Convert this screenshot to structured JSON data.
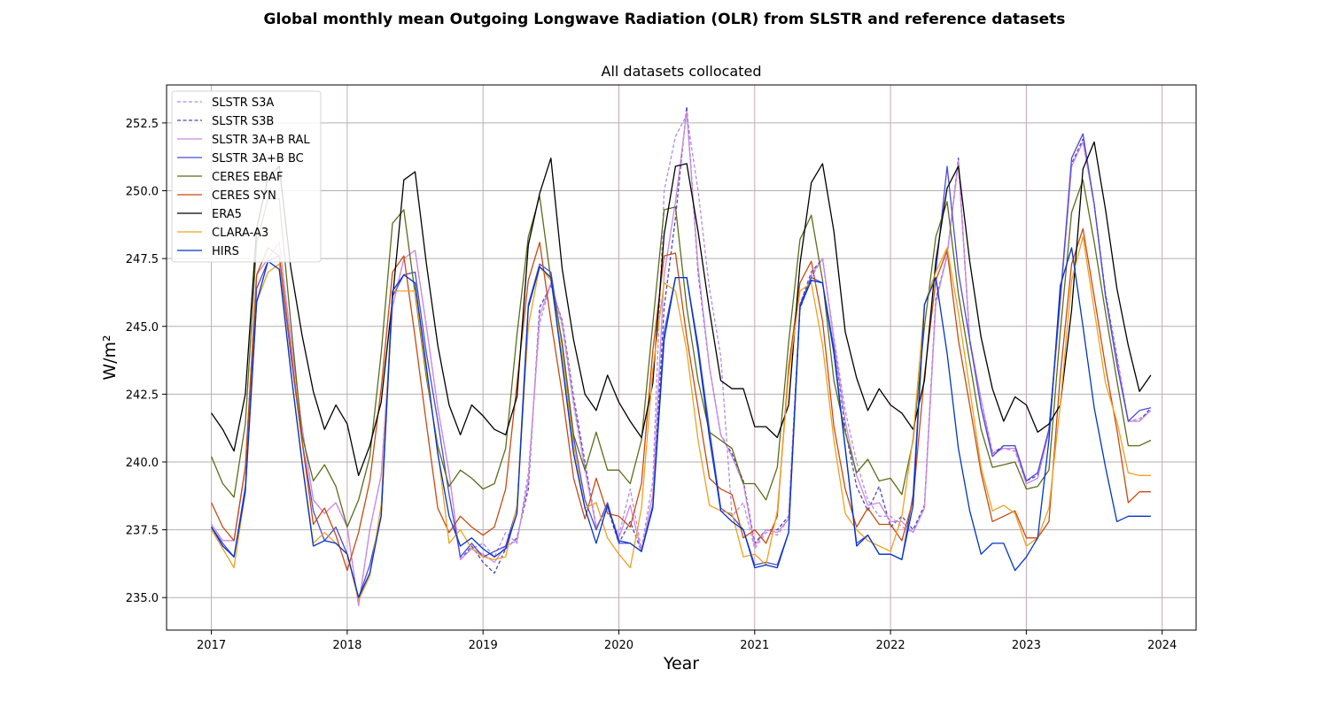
{
  "title": "Global monthly mean Outgoing Longwave Radiation (OLR) from SLSTR and reference datasets",
  "chart_data": {
    "type": "line",
    "title": "Global monthly mean Outgoing Longwave Radiation (OLR) from SLSTR and reference datasets",
    "subtitle": "All datasets collocated",
    "xlabel": "Year",
    "ylabel": "W/m²",
    "xlim": [
      2016.67,
      2024.25
    ],
    "ylim": [
      233.8,
      253.9
    ],
    "xticks": [
      2017,
      2018,
      2019,
      2020,
      2021,
      2022,
      2023,
      2024
    ],
    "xtick_labels": [
      "2017",
      "2018",
      "2019",
      "2020",
      "2021",
      "2022",
      "2023",
      "2024"
    ],
    "yticks": [
      235.0,
      237.5,
      240.0,
      242.5,
      245.0,
      247.5,
      250.0,
      252.5
    ],
    "ytick_labels": [
      "235.0",
      "237.5",
      "240.0",
      "242.5",
      "245.0",
      "247.5",
      "250.0",
      "252.5"
    ],
    "grid": true,
    "legend_position": "top-left",
    "x_start": 2017,
    "x_step_months": 1,
    "series": [
      {
        "name": "SLSTR S3A",
        "color": "#b58ae8",
        "dash": "dashed",
        "values": [
          237.7,
          237.1,
          237.1,
          239.8,
          246.9,
          247.5,
          248.1,
          244.6,
          241.3,
          238.6,
          238.1,
          238.5,
          237.6,
          234.7,
          237.5,
          239.5,
          245.7,
          247.5,
          247.8,
          245.0,
          242.0,
          239.6,
          236.4,
          236.8,
          237.0,
          236.5,
          237.4,
          237.0,
          239.6,
          245.1,
          246.6,
          245.0,
          242.1,
          239.7,
          237.6,
          238.3,
          237.3,
          239.0,
          236.8,
          239.3,
          250.0,
          252.0,
          252.8,
          250.0,
          246.4,
          243.9,
          238.0,
          238.5,
          236.8,
          237.4,
          237.3,
          237.9,
          245.6,
          246.8,
          247.5,
          244.6,
          241.9,
          240.0,
          238.6,
          238.0,
          238.0,
          237.6,
          237.4,
          238.3,
          245.8,
          247.7,
          251.0,
          244.4,
          242.3,
          240.4,
          240.5,
          240.4,
          239.2,
          239.4,
          241.1,
          245.9,
          250.9,
          251.8,
          249.5,
          246.1,
          243.8,
          241.5,
          241.6,
          241.9
        ]
      },
      {
        "name": "SLSTR S3B",
        "color": "#4747b8",
        "dash": "dashed",
        "values": [
          null,
          null,
          null,
          null,
          null,
          null,
          null,
          null,
          null,
          null,
          null,
          null,
          null,
          null,
          null,
          null,
          null,
          null,
          null,
          null,
          null,
          null,
          236.4,
          236.9,
          236.3,
          235.9,
          236.8,
          237.2,
          239.0,
          245.7,
          246.5,
          245.2,
          242.4,
          240.0,
          237.6,
          238.3,
          237.0,
          237.8,
          236.7,
          238.4,
          245.7,
          249.0,
          253.1,
          247.0,
          243.5,
          241.0,
          240.3,
          239.3,
          237.0,
          237.5,
          237.5,
          238.0,
          245.8,
          247.0,
          247.5,
          244.5,
          241.2,
          239.1,
          238.2,
          239.1,
          237.6,
          238.0,
          237.5,
          238.4,
          246.0,
          247.6,
          251.2,
          244.5,
          242.3,
          240.3,
          240.6,
          240.6,
          239.3,
          239.5,
          241.2,
          246.0,
          251.0,
          251.9,
          249.5,
          246.2,
          243.9,
          241.5,
          241.5,
          242.0
        ]
      },
      {
        "name": "SLSTR 3A+B RAL",
        "color": "#cc88e0",
        "dash": "solid",
        "values": [
          237.7,
          237.1,
          237.1,
          239.8,
          246.9,
          247.5,
          248.1,
          244.6,
          241.3,
          238.6,
          238.1,
          238.5,
          237.6,
          234.7,
          237.5,
          239.5,
          245.7,
          247.5,
          247.8,
          245.0,
          242.0,
          239.6,
          236.4,
          236.8,
          236.6,
          236.3,
          236.9,
          237.1,
          239.3,
          245.4,
          246.6,
          245.1,
          242.2,
          239.8,
          237.6,
          238.3,
          237.2,
          238.4,
          236.7,
          238.8,
          246.9,
          249.6,
          252.9,
          247.2,
          243.5,
          241.0,
          240.2,
          239.2,
          236.9,
          237.5,
          237.4,
          237.9,
          245.7,
          246.9,
          247.5,
          244.5,
          241.5,
          239.5,
          238.4,
          238.5,
          237.8,
          237.8,
          237.4,
          238.3,
          245.9,
          247.6,
          251.1,
          244.5,
          242.3,
          240.3,
          240.5,
          240.5,
          239.2,
          239.4,
          241.1,
          245.9,
          250.9,
          251.8,
          249.5,
          246.1,
          243.8,
          241.5,
          241.5,
          241.9
        ]
      },
      {
        "name": "SLSTR 3A+B BC",
        "color": "#4a4ad8",
        "dash": "solid",
        "values": [
          237.6,
          237.0,
          236.5,
          239.1,
          246.4,
          247.4,
          247.6,
          244.0,
          240.8,
          238.2,
          237.1,
          237.6,
          236.6,
          235.0,
          236.2,
          238.0,
          246.1,
          246.9,
          247.0,
          244.0,
          241.5,
          238.8,
          236.5,
          237.0,
          236.5,
          236.7,
          236.9,
          238.3,
          245.8,
          247.3,
          247.0,
          244.3,
          240.9,
          238.6,
          237.5,
          238.5,
          237.0,
          237.0,
          236.7,
          238.4,
          244.8,
          246.8,
          246.8,
          244.3,
          241.2,
          238.3,
          238.0,
          237.5,
          236.2,
          236.3,
          236.2,
          237.4,
          245.8,
          246.8,
          246.6,
          244.2,
          240.5,
          237.0,
          237.3,
          236.6,
          236.6,
          236.4,
          238.8,
          245.8,
          247.0,
          250.9,
          247.0,
          244.5,
          242.0,
          240.2,
          240.6,
          240.6,
          239.3,
          239.6,
          241.2,
          246.0,
          251.2,
          252.1,
          249.5,
          246.1,
          243.6,
          241.5,
          241.9,
          242.0
        ]
      },
      {
        "name": "CERES EBAF",
        "color": "#5a6e1a",
        "dash": "solid",
        "values": [
          240.2,
          239.2,
          238.7,
          241.4,
          248.1,
          249.7,
          249.7,
          245.2,
          241.0,
          239.3,
          239.9,
          239.1,
          237.6,
          238.6,
          240.2,
          244.0,
          248.8,
          249.3,
          246.2,
          243.1,
          240.6,
          239.1,
          239.7,
          239.4,
          239.0,
          239.2,
          240.5,
          244.7,
          248.3,
          249.8,
          246.7,
          244.4,
          241.0,
          239.7,
          241.1,
          239.7,
          239.7,
          239.2,
          240.8,
          245.1,
          249.3,
          249.4,
          245.7,
          243.0,
          241.1,
          240.8,
          240.5,
          239.2,
          239.2,
          238.6,
          239.8,
          244.4,
          248.2,
          249.1,
          246.7,
          243.0,
          241.1,
          239.6,
          240.1,
          239.3,
          239.4,
          238.8,
          240.8,
          245.0,
          248.3,
          249.6,
          246.2,
          243.7,
          241.2,
          239.8,
          239.9,
          240.0,
          239.0,
          239.1,
          239.7,
          244.8,
          249.2,
          250.4,
          248.1,
          245.5,
          243.0,
          240.6,
          240.6,
          240.8
        ]
      },
      {
        "name": "CERES SYN",
        "color": "#c84a10",
        "dash": "solid",
        "values": [
          238.5,
          237.6,
          237.1,
          239.8,
          246.9,
          247.9,
          247.6,
          244.2,
          240.8,
          237.7,
          238.3,
          237.3,
          236.0,
          237.4,
          239.3,
          242.7,
          247.0,
          247.6,
          244.6,
          241.4,
          238.3,
          237.4,
          238.0,
          237.6,
          237.3,
          237.6,
          239.0,
          242.9,
          246.7,
          248.1,
          245.2,
          242.5,
          239.4,
          237.9,
          239.4,
          238.1,
          238.0,
          237.6,
          239.2,
          244.1,
          247.6,
          247.7,
          244.6,
          242.0,
          239.4,
          239.0,
          238.8,
          237.2,
          237.5,
          237.0,
          238.0,
          243.5,
          246.6,
          247.4,
          245.2,
          241.3,
          239.0,
          237.6,
          238.3,
          237.7,
          237.7,
          237.1,
          238.6,
          243.2,
          246.7,
          247.8,
          244.5,
          242.1,
          239.6,
          237.8,
          238.0,
          238.2,
          237.2,
          237.2,
          237.8,
          243.2,
          247.3,
          248.6,
          246.1,
          243.5,
          241.2,
          238.5,
          238.9,
          238.9
        ]
      },
      {
        "name": "ERA5",
        "color": "#000000",
        "dash": "solid",
        "values": [
          241.8,
          241.2,
          240.4,
          242.5,
          248.6,
          250.5,
          250.9,
          247.2,
          244.7,
          242.6,
          241.2,
          242.1,
          241.4,
          239.5,
          240.6,
          242.2,
          246.0,
          250.4,
          250.7,
          247.3,
          244.3,
          242.1,
          241.0,
          242.1,
          241.7,
          241.2,
          241.0,
          242.4,
          248.0,
          249.9,
          251.2,
          247.1,
          244.5,
          242.5,
          241.9,
          243.2,
          242.2,
          241.5,
          240.9,
          242.9,
          248.4,
          250.9,
          251.0,
          248.5,
          245.6,
          243.0,
          242.7,
          242.7,
          241.3,
          241.3,
          240.9,
          242.1,
          247.3,
          250.3,
          251.0,
          248.5,
          244.8,
          243.1,
          241.9,
          242.7,
          242.1,
          241.8,
          241.2,
          243.0,
          247.4,
          250.1,
          250.9,
          247.4,
          244.6,
          242.7,
          241.5,
          242.4,
          242.1,
          241.1,
          241.4,
          242.1,
          245.6,
          250.8,
          251.8,
          249.3,
          246.4,
          244.3,
          242.6,
          243.2
        ]
      },
      {
        "name": "CLARA-A3",
        "color": "#f0a020",
        "dash": "solid",
        "values": [
          237.5,
          236.8,
          236.1,
          238.9,
          245.9,
          247.0,
          247.3,
          243.4,
          240.1,
          237.0,
          237.4,
          237.0,
          236.6,
          234.9,
          235.8,
          238.4,
          246.3,
          246.3,
          246.3,
          243.3,
          240.4,
          237.0,
          237.5,
          236.8,
          236.5,
          236.4,
          236.5,
          238.4,
          245.0,
          247.2,
          246.7,
          243.9,
          240.6,
          238.3,
          238.5,
          237.2,
          236.6,
          236.1,
          238.3,
          243.4,
          246.6,
          246.3,
          244.1,
          240.8,
          238.4,
          238.2,
          238.1,
          236.5,
          236.6,
          236.2,
          238.2,
          243.2,
          246.3,
          246.6,
          244.3,
          240.8,
          238.1,
          237.5,
          237.1,
          236.9,
          236.7,
          238.0,
          240.9,
          245.8,
          247.0,
          247.9,
          245.5,
          242.7,
          239.8,
          238.2,
          238.4,
          238.1,
          236.9,
          237.2,
          238.3,
          242.1,
          246.7,
          248.3,
          245.6,
          242.9,
          241.5,
          239.6,
          239.5,
          239.5
        ]
      },
      {
        "name": "HIRS",
        "color": "#0035c8",
        "dash": "solid",
        "values": [
          237.6,
          236.9,
          236.5,
          238.9,
          245.9,
          247.4,
          247.1,
          243.4,
          240.0,
          236.9,
          237.1,
          237.0,
          236.6,
          235.0,
          235.9,
          238.0,
          246.3,
          246.9,
          246.6,
          243.5,
          240.3,
          238.0,
          236.9,
          237.2,
          236.8,
          236.5,
          236.8,
          238.1,
          245.7,
          247.2,
          246.8,
          243.6,
          240.3,
          238.3,
          237.0,
          238.4,
          237.1,
          237.0,
          236.7,
          238.3,
          244.5,
          246.8,
          246.8,
          244.1,
          240.9,
          238.2,
          237.8,
          237.5,
          236.1,
          236.2,
          236.1,
          237.4,
          245.7,
          246.7,
          246.6,
          244.0,
          240.5,
          236.9,
          237.3,
          236.6,
          236.6,
          236.4,
          238.4,
          245.8,
          246.8,
          244.0,
          240.5,
          238.2,
          236.6,
          237.0,
          237.0,
          236.0,
          236.5,
          237.2,
          240.8,
          246.5,
          247.9,
          245.0,
          242.0,
          239.8,
          237.8,
          238.0,
          238.0,
          238.0
        ]
      }
    ]
  }
}
